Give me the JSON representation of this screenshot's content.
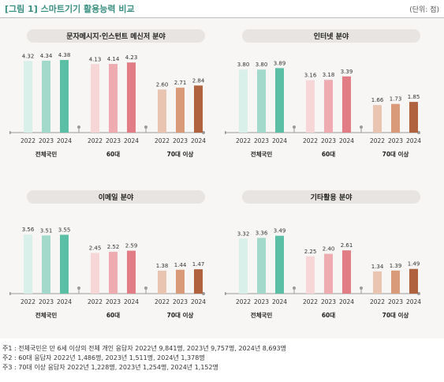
{
  "header": {
    "title": "[그림 1]  스마트기기 활용능력 비교",
    "unit": "(단위: 점)"
  },
  "colors": {
    "전체국민": [
      "#d9efe9",
      "#a2d9cb",
      "#5bbfa5"
    ],
    "60대": [
      "#f6d6d7",
      "#eeabb0",
      "#e27d86"
    ],
    "70대 이상": [
      "#e9c4b1",
      "#d99a79",
      "#b0623f"
    ],
    "pill": "#e7e4e1"
  },
  "chart_data": [
    {
      "type": "bar",
      "title": "문자메시지·인스턴트 메신저 분야",
      "groups": [
        "전체국민",
        "60대",
        "70대 이상"
      ],
      "x": [
        "2022",
        "2023",
        "2024"
      ],
      "values": [
        [
          4.32,
          4.34,
          4.38
        ],
        [
          4.13,
          4.14,
          4.23
        ],
        [
          2.6,
          2.71,
          2.84
        ]
      ],
      "labels": [
        [
          "4.32",
          "4.34",
          "4.38"
        ],
        [
          "4.13",
          "4.14",
          "4.23"
        ],
        [
          "2.60",
          "2.71",
          "2.84"
        ]
      ]
    },
    {
      "type": "bar",
      "title": "인터넷 분야",
      "groups": [
        "전체국민",
        "60대",
        "70대 이상"
      ],
      "x": [
        "2022",
        "2023",
        "2024"
      ],
      "values": [
        [
          3.8,
          3.8,
          3.89
        ],
        [
          3.16,
          3.18,
          3.39
        ],
        [
          1.66,
          1.73,
          1.85
        ]
      ],
      "labels": [
        [
          "3.80",
          "3.80",
          "3.89"
        ],
        [
          "3.16",
          "3.18",
          "3.39"
        ],
        [
          "1.66",
          "1.73",
          "1.85"
        ]
      ]
    },
    {
      "type": "bar",
      "title": "이메일 분야",
      "groups": [
        "전체국민",
        "60대",
        "70대 이상"
      ],
      "x": [
        "2022",
        "2023",
        "2024"
      ],
      "values": [
        [
          3.56,
          3.51,
          3.55
        ],
        [
          2.45,
          2.52,
          2.59
        ],
        [
          1.38,
          1.44,
          1.47
        ]
      ],
      "labels": [
        [
          "3.56",
          "3.51",
          "3.55"
        ],
        [
          "2.45",
          "2.52",
          "2.59"
        ],
        [
          "1.38",
          "1.44",
          "1.47"
        ]
      ]
    },
    {
      "type": "bar",
      "title": "기타활용 분야",
      "groups": [
        "전체국민",
        "60대",
        "70대 이상"
      ],
      "x": [
        "2022",
        "2023",
        "2024"
      ],
      "values": [
        [
          3.32,
          3.36,
          3.49
        ],
        [
          2.25,
          2.4,
          2.61
        ],
        [
          1.34,
          1.39,
          1.49
        ]
      ],
      "labels": [
        [
          "3.32",
          "3.36",
          "3.49"
        ],
        [
          "2.25",
          "2.40",
          "2.61"
        ],
        [
          "1.34",
          "1.39",
          "1.49"
        ]
      ]
    }
  ],
  "notes": [
    "주1 : 전체국민은 만 6세 이상의 전체 개인 응답자 2022년 9,841명, 2023년 9,757명, 2024년 8,693명",
    "주2 : 60대 응답자 2022년 1,486명, 2023년 1,511명, 2024년 1,378명",
    "주3 : 70대 이상 응답자 2022년 1,228명, 2023년 1,254명, 2024년 1,152명"
  ]
}
